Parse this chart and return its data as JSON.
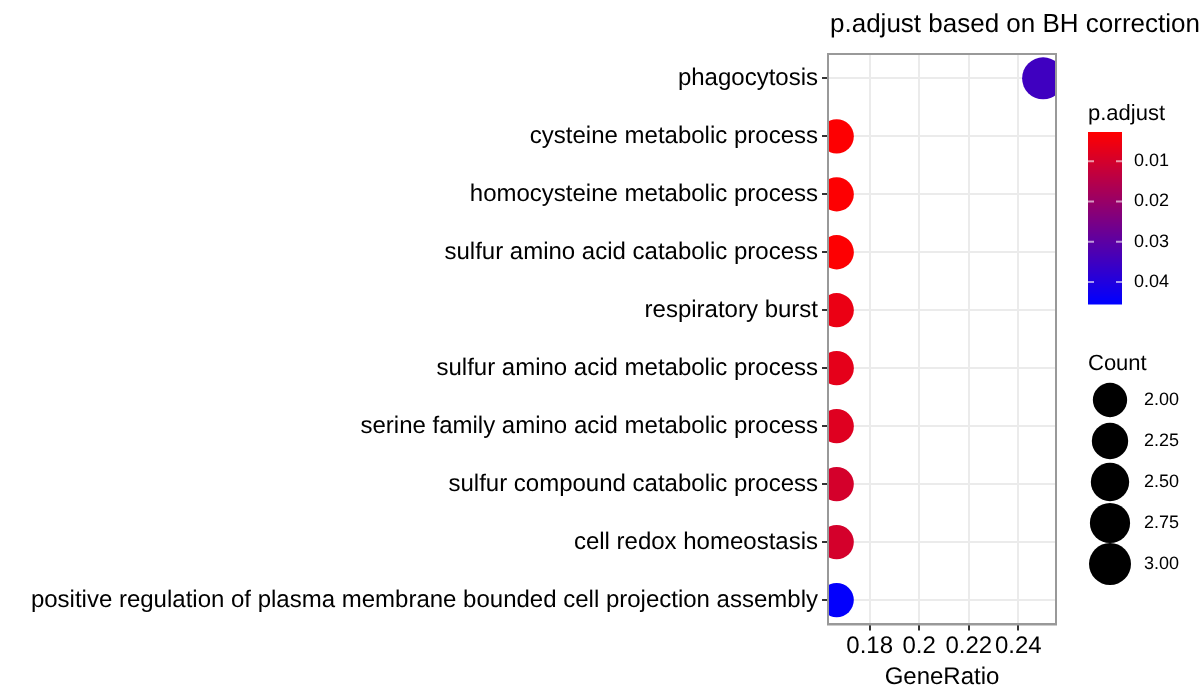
{
  "chart_data": {
    "type": "bubble",
    "orientation": "horizontal",
    "title": "p.adjust based on BH correction",
    "xlabel": "GeneRatio",
    "clabel": "p.adjust",
    "legend_title": "Count",
    "categories": [
      "phagocytosis",
      "cysteine metabolic process",
      "homocysteine metabolic process",
      "sulfur amino acid catabolic process",
      "respiratory burst",
      "sulfur amino acid metabolic process",
      "serine family amino acid metabolic process",
      "sulfur compound catabolic process",
      "cell redox homeostasis",
      "positive regulation of plasma membrane bounded cell projection assembly"
    ],
    "values": [
      0.25,
      0.1667,
      0.1667,
      0.1667,
      0.1667,
      0.1667,
      0.1667,
      0.1667,
      0.1667,
      0.1667
    ],
    "sizes": [
      3,
      2,
      2,
      2,
      2,
      2,
      2,
      2,
      2,
      2
    ],
    "cvalues": [
      0.035,
      0.003,
      0.003,
      0.003,
      0.006,
      0.007,
      0.008,
      0.01,
      0.01,
      0.045
    ],
    "clim": [
      0.0027,
      0.0455
    ],
    "cticks": [
      0.01,
      0.02,
      0.03,
      0.04
    ],
    "size_legend": [
      {
        "value": 2,
        "label": "2.00"
      },
      {
        "value": 2.25,
        "label": "2.25"
      },
      {
        "value": 2.5,
        "label": "2.50"
      },
      {
        "value": 2.75,
        "label": "2.75"
      },
      {
        "value": 3,
        "label": "3.00"
      }
    ],
    "xlim": [
      0.1632,
      0.2552
    ],
    "xticks": [
      0.18,
      0.2,
      0.22,
      0.24
    ],
    "grid": true
  }
}
